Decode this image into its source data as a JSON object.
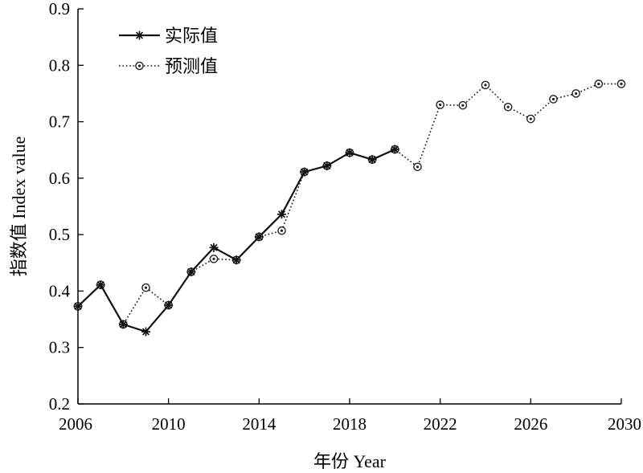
{
  "chart_data": {
    "type": "line",
    "xlabel": "年份 Year",
    "ylabel": "指数值 Index value",
    "xlim": [
      2006,
      2030
    ],
    "ylim": [
      0.2,
      0.9
    ],
    "x_ticks": [
      "2006",
      "2010",
      "2014",
      "2018",
      "2022",
      "2026",
      "2030"
    ],
    "y_ticks": [
      "0.2",
      "0.3",
      "0.4",
      "0.5",
      "0.6",
      "0.7",
      "0.8",
      "0.9"
    ],
    "grid": false,
    "legend_position": "top-left",
    "series": [
      {
        "name": "实际值",
        "marker": "star",
        "line_style": "solid",
        "x": [
          2006,
          2007,
          2008,
          2009,
          2010,
          2011,
          2012,
          2013,
          2014,
          2015,
          2016,
          2017,
          2018,
          2019,
          2020
        ],
        "values": [
          0.373,
          0.411,
          0.341,
          0.328,
          0.375,
          0.434,
          0.477,
          0.455,
          0.496,
          0.536,
          0.611,
          0.622,
          0.645,
          0.633,
          0.651
        ]
      },
      {
        "name": "预测值",
        "marker": "circle-dot",
        "line_style": "dotted",
        "x": [
          2006,
          2007,
          2008,
          2009,
          2010,
          2011,
          2012,
          2013,
          2014,
          2015,
          2016,
          2017,
          2018,
          2019,
          2020,
          2021,
          2022,
          2023,
          2024,
          2025,
          2026,
          2027,
          2028,
          2029,
          2030
        ],
        "values": [
          0.373,
          0.411,
          0.341,
          0.406,
          0.375,
          0.434,
          0.457,
          0.455,
          0.496,
          0.507,
          0.611,
          0.622,
          0.645,
          0.633,
          0.651,
          0.62,
          0.73,
          0.729,
          0.765,
          0.726,
          0.705,
          0.74,
          0.75,
          0.767,
          0.767
        ]
      }
    ]
  }
}
